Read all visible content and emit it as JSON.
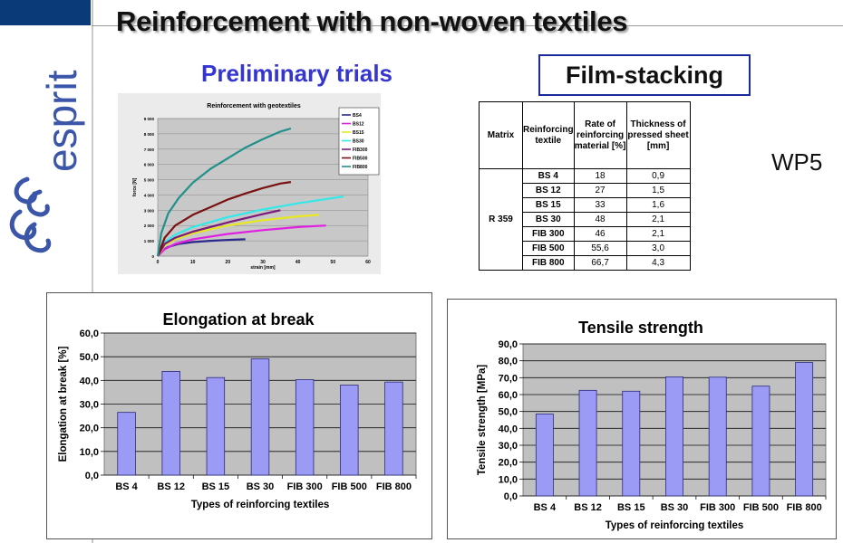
{
  "slide": {
    "title": "Reinforcement with non-woven textiles",
    "subtitle_left": "Preliminary trials",
    "subtitle_right": "Film-stacking",
    "label_wp": "WP5",
    "logo_text": "esprit"
  },
  "table": {
    "headers": [
      "Matrix",
      "Reinforcing textile",
      "Rate of reinforcing material [%]",
      "Thickness of pressed sheet [mm]"
    ],
    "matrix": "R 359",
    "rows": [
      {
        "textile": "BS 4",
        "rate": "18",
        "thickness": "0,9"
      },
      {
        "textile": "BS 12",
        "rate": "27",
        "thickness": "1,5"
      },
      {
        "textile": "BS 15",
        "rate": "33",
        "thickness": "1,6"
      },
      {
        "textile": "BS 30",
        "rate": "48",
        "thickness": "2,1"
      },
      {
        "textile": "FIB 300",
        "rate": "46",
        "thickness": "2,1"
      },
      {
        "textile": "FIB 500",
        "rate": "55,6",
        "thickness": "3,0"
      },
      {
        "textile": "FIB 800",
        "rate": "66,7",
        "thickness": "4,3"
      }
    ]
  },
  "chart_data": [
    {
      "type": "line",
      "title": "Reinforcement with geotextiles",
      "xlabel": "strain [mm]",
      "ylabel": "force [N]",
      "xlim": [
        0,
        60
      ],
      "ylim": [
        0,
        9000
      ],
      "xticks": [
        0,
        10,
        20,
        30,
        40,
        50,
        60
      ],
      "yticks": [
        0,
        1000,
        2000,
        3000,
        4000,
        5000,
        6000,
        7000,
        8000,
        9000
      ],
      "xtick_labels": [
        "0",
        "10",
        "20",
        "30",
        "40",
        "50",
        "60"
      ],
      "ytick_labels": [
        "0",
        "1 000",
        "2 000",
        "3 000",
        "4 000",
        "5 000",
        "6 000",
        "7 000",
        "8 000",
        "9 000"
      ],
      "legend_position": "right",
      "grid": true,
      "series": [
        {
          "name": "BS4",
          "color": "#2a2a8a",
          "x": [
            0,
            1,
            3,
            6,
            10,
            15,
            20,
            25
          ],
          "y": [
            0,
            350,
            600,
            800,
            920,
            1000,
            1060,
            1100
          ]
        },
        {
          "name": "BS12",
          "color": "#e020e0",
          "x": [
            0,
            2,
            5,
            10,
            20,
            30,
            40,
            48
          ],
          "y": [
            0,
            450,
            800,
            1100,
            1450,
            1700,
            1900,
            2000
          ]
        },
        {
          "name": "BS15",
          "color": "#e8e820",
          "x": [
            0,
            2,
            5,
            10,
            20,
            30,
            40,
            46
          ],
          "y": [
            0,
            700,
            1100,
            1500,
            2000,
            2350,
            2600,
            2700
          ]
        },
        {
          "name": "BS30",
          "color": "#33e8e8",
          "x": [
            0,
            2,
            5,
            10,
            20,
            30,
            40,
            50,
            53
          ],
          "y": [
            0,
            900,
            1400,
            1900,
            2550,
            3050,
            3450,
            3800,
            3900
          ]
        },
        {
          "name": "FIB300",
          "color": "#7a1a7a",
          "x": [
            0,
            2,
            5,
            10,
            20,
            30,
            35
          ],
          "y": [
            0,
            800,
            1200,
            1600,
            2200,
            2750,
            3000
          ]
        },
        {
          "name": "FIB500",
          "color": "#7a1010",
          "x": [
            0,
            2,
            5,
            10,
            15,
            20,
            25,
            30,
            35,
            38
          ],
          "y": [
            0,
            1200,
            2000,
            2700,
            3200,
            3700,
            4100,
            4450,
            4750,
            4850
          ]
        },
        {
          "name": "FIB800",
          "color": "#20908a",
          "x": [
            0,
            1,
            3,
            6,
            10,
            15,
            20,
            25,
            30,
            35,
            38
          ],
          "y": [
            0,
            1500,
            2800,
            3800,
            4800,
            5700,
            6400,
            7100,
            7650,
            8150,
            8350
          ]
        }
      ]
    },
    {
      "type": "bar",
      "title": "Elongation at break",
      "xlabel": "Types of reinforcing textiles",
      "ylabel": "Elongation at break  [%]",
      "categories": [
        "BS 4",
        "BS 12",
        "BS 15",
        "BS 30",
        "FIB 300",
        "FIB 500",
        "FIB 800"
      ],
      "values": [
        26.5,
        43.8,
        41.2,
        49.1,
        40.3,
        38.0,
        39.3
      ],
      "ylim": [
        0,
        60
      ],
      "yticks": [
        0,
        10,
        20,
        30,
        40,
        50,
        60
      ],
      "ytick_labels": [
        "0,0",
        "10,0",
        "20,0",
        "30,0",
        "40,0",
        "50,0",
        "60,0"
      ],
      "grid": true,
      "bar_color": "#9b9bf5"
    },
    {
      "type": "bar",
      "title": "Tensile strength",
      "xlabel": "Types of reinforcing textiles",
      "ylabel": "Tensile strength  [MPa]",
      "categories": [
        "BS 4",
        "BS 12",
        "BS 15",
        "BS 30",
        "FIB 300",
        "FIB 500",
        "FIB 800"
      ],
      "values": [
        48.5,
        62.5,
        62.0,
        70.5,
        70.3,
        65.0,
        79.0
      ],
      "ylim": [
        0,
        90
      ],
      "yticks": [
        0,
        10,
        20,
        30,
        40,
        50,
        60,
        70,
        80,
        90
      ],
      "ytick_labels": [
        "0,0",
        "10,0",
        "20,0",
        "30,0",
        "40,0",
        "50,0",
        "60,0",
        "70,0",
        "80,0",
        "90,0"
      ],
      "grid": true,
      "bar_color": "#9b9bf5"
    }
  ]
}
